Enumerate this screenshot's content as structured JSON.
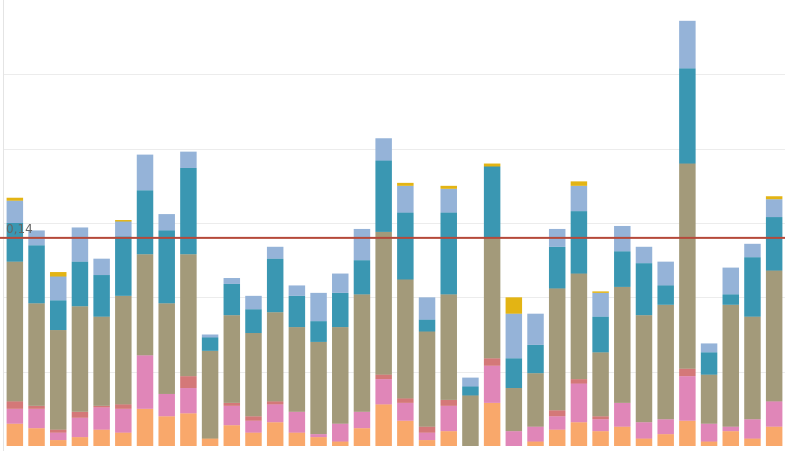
{
  "chart_data": {
    "type": "bar",
    "stacked": true,
    "ylim": [
      0,
      0.3
    ],
    "grid": true,
    "gridlines": [
      0.05,
      0.1,
      0.15,
      0.2,
      0.25
    ],
    "reference_line": {
      "value": 0.14,
      "label": "0,14",
      "color": "#b5493a"
    },
    "series_colors": [
      "#f9a86b",
      "#e086b8",
      "#d47878",
      "#a39a7a",
      "#3a97b2",
      "#95b3d8",
      "#e3b414"
    ],
    "series": [
      {
        "values": [
          0.015,
          0.012,
          0.004,
          0.006,
          0.011,
          0.009,
          0.025,
          0.02,
          0.022,
          0.005,
          0.014,
          0.009,
          0.016,
          0.009,
          0.006,
          0.003,
          0.012,
          0.028,
          0.017,
          0.004,
          0.01,
          0.0,
          0.029,
          0.0,
          0.003,
          0.011,
          0.016,
          0.01,
          0.013,
          0.005,
          0.008,
          0.017,
          0.003,
          0.01,
          0.005,
          0.013
        ]
      },
      {
        "values": [
          0.01,
          0.013,
          0.005,
          0.013,
          0.015,
          0.016,
          0.036,
          0.015,
          0.017,
          0.0,
          0.013,
          0.008,
          0.012,
          0.014,
          0.002,
          0.012,
          0.011,
          0.017,
          0.012,
          0.005,
          0.017,
          0.0,
          0.025,
          0.01,
          0.01,
          0.009,
          0.026,
          0.008,
          0.016,
          0.011,
          0.01,
          0.03,
          0.012,
          0.003,
          0.013,
          0.017
        ]
      },
      {
        "values": [
          0.005,
          0.002,
          0.002,
          0.004,
          0.001,
          0.003,
          0.0,
          0.0,
          0.008,
          0.0,
          0.002,
          0.003,
          0.002,
          0.0,
          0.0,
          0.0,
          0.0,
          0.003,
          0.003,
          0.004,
          0.004,
          0.0,
          0.005,
          0.0,
          0.0,
          0.004,
          0.003,
          0.002,
          0.0,
          0.0,
          0.0,
          0.005,
          0.0,
          0.0,
          0.0,
          0.0
        ]
      },
      {
        "values": [
          0.094,
          0.069,
          0.067,
          0.071,
          0.06,
          0.073,
          0.068,
          0.061,
          0.082,
          0.059,
          0.059,
          0.056,
          0.06,
          0.057,
          0.062,
          0.065,
          0.079,
          0.096,
          0.08,
          0.064,
          0.071,
          0.034,
          0.081,
          0.029,
          0.036,
          0.082,
          0.071,
          0.043,
          0.078,
          0.072,
          0.077,
          0.138,
          0.033,
          0.082,
          0.069,
          0.088
        ]
      },
      {
        "values": [
          0.026,
          0.039,
          0.02,
          0.03,
          0.028,
          0.04,
          0.043,
          0.049,
          0.058,
          0.009,
          0.021,
          0.016,
          0.036,
          0.021,
          0.014,
          0.023,
          0.023,
          0.048,
          0.045,
          0.008,
          0.055,
          0.006,
          0.048,
          0.02,
          0.019,
          0.028,
          0.042,
          0.024,
          0.024,
          0.035,
          0.013,
          0.064,
          0.015,
          0.007,
          0.04,
          0.036
        ]
      },
      {
        "values": [
          0.015,
          0.01,
          0.016,
          0.023,
          0.011,
          0.01,
          0.024,
          0.011,
          0.011,
          0.002,
          0.004,
          0.009,
          0.008,
          0.007,
          0.019,
          0.013,
          0.021,
          0.015,
          0.018,
          0.015,
          0.016,
          0.006,
          0.0,
          0.03,
          0.021,
          0.012,
          0.017,
          0.016,
          0.017,
          0.011,
          0.016,
          0.032,
          0.006,
          0.018,
          0.009,
          0.012
        ]
      },
      {
        "values": [
          0.002,
          0.0,
          0.003,
          0.0,
          0.0,
          0.001,
          0.0,
          0.0,
          0.0,
          0.0,
          0.0,
          0.0,
          0.0,
          0.0,
          0.0,
          0.0,
          0.0,
          0.0,
          0.002,
          0.0,
          0.002,
          0.0,
          0.002,
          0.011,
          0.0,
          0.0,
          0.003,
          0.001,
          0.0,
          0.0,
          0.0,
          0.0,
          0.0,
          0.0,
          0.0,
          0.002
        ]
      }
    ]
  }
}
